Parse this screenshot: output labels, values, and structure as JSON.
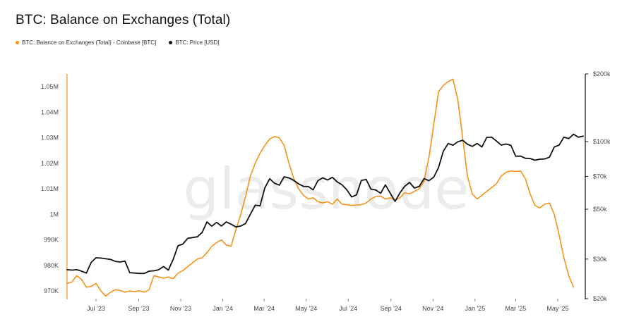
{
  "colors": {
    "balance": "#f7931a",
    "price": "#111111",
    "watermark": "#ececec",
    "axis": "#f7931a"
  },
  "watermark": "glassnode",
  "chart_data": {
    "type": "line",
    "title": "BTC: Balance on Exchanges (Total)",
    "x_ticks": [
      "Jul '23",
      "Sep '23",
      "Nov '23",
      "Jan '24",
      "Mar '24",
      "May '24",
      "Jul '24",
      "Sep '24",
      "Nov '24",
      "Jan '25",
      "Mar '25",
      "May '25"
    ],
    "x_tick_dates": [
      "2023-07-01",
      "2023-09-01",
      "2023-11-01",
      "2024-01-01",
      "2024-03-01",
      "2024-05-01",
      "2024-07-01",
      "2024-09-01",
      "2024-11-01",
      "2025-01-01",
      "2025-03-01",
      "2025-05-01"
    ],
    "xlim": [
      "2023-05-20",
      "2025-06-10"
    ],
    "y_left": {
      "ticks": [
        "970K",
        "980K",
        "990K",
        "1M",
        "1.01M",
        "1.02M",
        "1.03M",
        "1.04M",
        "1.05M"
      ],
      "tick_values": [
        970000,
        980000,
        990000,
        1000000,
        1010000,
        1020000,
        1030000,
        1040000,
        1050000
      ],
      "ylim": [
        967000,
        1055000
      ]
    },
    "y_right": {
      "scale": "log",
      "ticks": [
        "$20k",
        "$30k",
        "$50k",
        "$70k",
        "$100k",
        "$200k"
      ],
      "tick_values": [
        20000,
        30000,
        50000,
        70000,
        100000,
        200000
      ],
      "ylim": [
        20000,
        200000
      ]
    },
    "legend_position": "top-left",
    "series": [
      {
        "name": "BTC: Balance on Exchanges (Total) - Coinbase [BTC]",
        "axis": "left",
        "points": [
          [
            "2023-05-20",
            973000
          ],
          [
            "2023-05-27",
            973500
          ],
          [
            "2023-06-03",
            976000
          ],
          [
            "2023-06-10",
            974500
          ],
          [
            "2023-06-17",
            971500
          ],
          [
            "2023-06-24",
            971800
          ],
          [
            "2023-07-01",
            973000
          ],
          [
            "2023-07-08",
            970000
          ],
          [
            "2023-07-15",
            968000
          ],
          [
            "2023-07-22",
            969500
          ],
          [
            "2023-07-29",
            970500
          ],
          [
            "2023-08-05",
            970200
          ],
          [
            "2023-08-12",
            969500
          ],
          [
            "2023-08-19",
            970000
          ],
          [
            "2023-08-26",
            969800
          ],
          [
            "2023-09-02",
            970100
          ],
          [
            "2023-09-09",
            969500
          ],
          [
            "2023-09-16",
            970500
          ],
          [
            "2023-09-23",
            976000
          ],
          [
            "2023-09-30",
            975500
          ],
          [
            "2023-10-07",
            975000
          ],
          [
            "2023-10-14",
            975500
          ],
          [
            "2023-10-21",
            974800
          ],
          [
            "2023-10-28",
            977000
          ],
          [
            "2023-11-04",
            978000
          ],
          [
            "2023-11-11",
            979500
          ],
          [
            "2023-11-18",
            981000
          ],
          [
            "2023-11-25",
            982500
          ],
          [
            "2023-12-02",
            983000
          ],
          [
            "2023-12-09",
            985000
          ],
          [
            "2023-12-16",
            987500
          ],
          [
            "2023-12-23",
            989000
          ],
          [
            "2023-12-30",
            990000
          ],
          [
            "2024-01-06",
            988000
          ],
          [
            "2024-01-13",
            987500
          ],
          [
            "2024-01-20",
            994000
          ],
          [
            "2024-01-27",
            1000000
          ],
          [
            "2024-02-03",
            1007000
          ],
          [
            "2024-02-10",
            1015000
          ],
          [
            "2024-02-17",
            1020000
          ],
          [
            "2024-02-24",
            1024000
          ],
          [
            "2024-03-02",
            1027000
          ],
          [
            "2024-03-09",
            1029500
          ],
          [
            "2024-03-16",
            1030500
          ],
          [
            "2024-03-23",
            1030000
          ],
          [
            "2024-03-30",
            1027000
          ],
          [
            "2024-04-06",
            1020000
          ],
          [
            "2024-04-13",
            1014000
          ],
          [
            "2024-04-20",
            1010000
          ],
          [
            "2024-04-27",
            1007500
          ],
          [
            "2024-05-04",
            1006000
          ],
          [
            "2024-05-11",
            1006500
          ],
          [
            "2024-05-18",
            1005000
          ],
          [
            "2024-05-25",
            1004500
          ],
          [
            "2024-06-01",
            1005000
          ],
          [
            "2024-06-08",
            1004000
          ],
          [
            "2024-06-15",
            1006000
          ],
          [
            "2024-06-22",
            1004000
          ],
          [
            "2024-06-29",
            1003800
          ],
          [
            "2024-07-06",
            1003500
          ],
          [
            "2024-07-13",
            1003700
          ],
          [
            "2024-07-20",
            1003800
          ],
          [
            "2024-07-27",
            1004500
          ],
          [
            "2024-08-03",
            1006000
          ],
          [
            "2024-08-10",
            1007000
          ],
          [
            "2024-08-17",
            1007200
          ],
          [
            "2024-08-24",
            1006000
          ],
          [
            "2024-08-31",
            1006500
          ],
          [
            "2024-09-07",
            1005500
          ],
          [
            "2024-09-14",
            1006500
          ],
          [
            "2024-09-21",
            1008500
          ],
          [
            "2024-09-28",
            1008000
          ],
          [
            "2024-10-05",
            1009000
          ],
          [
            "2024-10-12",
            1010000
          ],
          [
            "2024-10-19",
            1013000
          ],
          [
            "2024-10-26",
            1022000
          ],
          [
            "2024-11-02",
            1035000
          ],
          [
            "2024-11-09",
            1048000
          ],
          [
            "2024-11-16",
            1050500
          ],
          [
            "2024-11-23",
            1052000
          ],
          [
            "2024-11-30",
            1053000
          ],
          [
            "2024-12-07",
            1045000
          ],
          [
            "2024-12-14",
            1030000
          ],
          [
            "2024-12-21",
            1015000
          ],
          [
            "2024-12-28",
            1008000
          ],
          [
            "2025-01-04",
            1006000
          ],
          [
            "2025-01-11",
            1007500
          ],
          [
            "2025-01-18",
            1009000
          ],
          [
            "2025-01-25",
            1010500
          ],
          [
            "2025-02-01",
            1012000
          ],
          [
            "2025-02-08",
            1015000
          ],
          [
            "2025-02-15",
            1016500
          ],
          [
            "2025-02-22",
            1017000
          ],
          [
            "2025-03-01",
            1016800
          ],
          [
            "2025-03-08",
            1017000
          ],
          [
            "2025-03-15",
            1014000
          ],
          [
            "2025-03-22",
            1008000
          ],
          [
            "2025-03-29",
            1003500
          ],
          [
            "2025-04-05",
            1002500
          ],
          [
            "2025-04-12",
            1004000
          ],
          [
            "2025-04-19",
            1004500
          ],
          [
            "2025-04-26",
            1000000
          ],
          [
            "2025-05-03",
            992000
          ],
          [
            "2025-05-10",
            983000
          ],
          [
            "2025-05-17",
            976000
          ],
          [
            "2025-05-24",
            971500
          ]
        ]
      },
      {
        "name": "BTC: Price [USD]",
        "axis": "right",
        "points": [
          [
            "2023-05-20",
            26900
          ],
          [
            "2023-05-27",
            26800
          ],
          [
            "2023-06-03",
            26900
          ],
          [
            "2023-06-10",
            26500
          ],
          [
            "2023-06-17",
            26000
          ],
          [
            "2023-06-24",
            29000
          ],
          [
            "2023-07-01",
            30400
          ],
          [
            "2023-07-08",
            30300
          ],
          [
            "2023-07-15",
            30100
          ],
          [
            "2023-07-22",
            29900
          ],
          [
            "2023-07-29",
            29300
          ],
          [
            "2023-08-05",
            29100
          ],
          [
            "2023-08-12",
            29400
          ],
          [
            "2023-08-19",
            26100
          ],
          [
            "2023-08-26",
            26000
          ],
          [
            "2023-09-02",
            25900
          ],
          [
            "2023-09-09",
            25900
          ],
          [
            "2023-09-16",
            26500
          ],
          [
            "2023-09-23",
            26600
          ],
          [
            "2023-09-30",
            26900
          ],
          [
            "2023-10-07",
            27800
          ],
          [
            "2023-10-14",
            26800
          ],
          [
            "2023-10-21",
            29900
          ],
          [
            "2023-10-28",
            34400
          ],
          [
            "2023-11-04",
            35000
          ],
          [
            "2023-11-11",
            37100
          ],
          [
            "2023-11-18",
            37400
          ],
          [
            "2023-11-25",
            37700
          ],
          [
            "2023-12-02",
            39400
          ],
          [
            "2023-12-09",
            43900
          ],
          [
            "2023-12-16",
            42000
          ],
          [
            "2023-12-23",
            43700
          ],
          [
            "2023-12-30",
            42100
          ],
          [
            "2024-01-06",
            43900
          ],
          [
            "2024-01-13",
            42900
          ],
          [
            "2024-01-20",
            41700
          ],
          [
            "2024-01-27",
            42100
          ],
          [
            "2024-02-03",
            43200
          ],
          [
            "2024-02-10",
            47500
          ],
          [
            "2024-02-17",
            52100
          ],
          [
            "2024-02-24",
            51800
          ],
          [
            "2024-03-02",
            62200
          ],
          [
            "2024-03-09",
            68300
          ],
          [
            "2024-03-16",
            65300
          ],
          [
            "2024-03-23",
            64000
          ],
          [
            "2024-03-30",
            69700
          ],
          [
            "2024-04-06",
            68900
          ],
          [
            "2024-04-13",
            67200
          ],
          [
            "2024-04-20",
            64800
          ],
          [
            "2024-04-27",
            63200
          ],
          [
            "2024-05-04",
            63100
          ],
          [
            "2024-05-11",
            61000
          ],
          [
            "2024-05-18",
            67000
          ],
          [
            "2024-05-25",
            69000
          ],
          [
            "2024-06-01",
            67500
          ],
          [
            "2024-06-08",
            69300
          ],
          [
            "2024-06-15",
            66200
          ],
          [
            "2024-06-22",
            64200
          ],
          [
            "2024-06-29",
            61000
          ],
          [
            "2024-07-06",
            56700
          ],
          [
            "2024-07-13",
            57900
          ],
          [
            "2024-07-20",
            67100
          ],
          [
            "2024-07-27",
            67900
          ],
          [
            "2024-08-03",
            61400
          ],
          [
            "2024-08-10",
            60900
          ],
          [
            "2024-08-17",
            58900
          ],
          [
            "2024-08-24",
            64200
          ],
          [
            "2024-08-31",
            58900
          ],
          [
            "2024-09-07",
            54200
          ],
          [
            "2024-09-14",
            59100
          ],
          [
            "2024-09-21",
            63300
          ],
          [
            "2024-09-28",
            65800
          ],
          [
            "2024-10-05",
            62100
          ],
          [
            "2024-10-12",
            63200
          ],
          [
            "2024-10-19",
            68400
          ],
          [
            "2024-10-26",
            67000
          ],
          [
            "2024-11-02",
            69400
          ],
          [
            "2024-11-09",
            76600
          ],
          [
            "2024-11-16",
            90600
          ],
          [
            "2024-11-23",
            98000
          ],
          [
            "2024-11-30",
            96400
          ],
          [
            "2024-12-07",
            99800
          ],
          [
            "2024-12-14",
            101400
          ],
          [
            "2024-12-21",
            97300
          ],
          [
            "2024-12-28",
            95200
          ],
          [
            "2025-01-04",
            98100
          ],
          [
            "2025-01-11",
            94700
          ],
          [
            "2025-01-18",
            104400
          ],
          [
            "2025-01-25",
            104700
          ],
          [
            "2025-02-01",
            100600
          ],
          [
            "2025-02-08",
            96500
          ],
          [
            "2025-02-15",
            97500
          ],
          [
            "2025-02-22",
            96300
          ],
          [
            "2025-03-01",
            86100
          ],
          [
            "2025-03-08",
            86200
          ],
          [
            "2025-03-15",
            84300
          ],
          [
            "2025-03-22",
            84100
          ],
          [
            "2025-03-29",
            82600
          ],
          [
            "2025-04-05",
            83500
          ],
          [
            "2025-04-12",
            83700
          ],
          [
            "2025-04-19",
            85200
          ],
          [
            "2025-04-26",
            94600
          ],
          [
            "2025-05-03",
            96500
          ],
          [
            "2025-05-10",
            104600
          ],
          [
            "2025-05-17",
            103100
          ],
          [
            "2025-05-24",
            107800
          ],
          [
            "2025-05-31",
            104600
          ],
          [
            "2025-06-07",
            105700
          ]
        ]
      }
    ]
  }
}
